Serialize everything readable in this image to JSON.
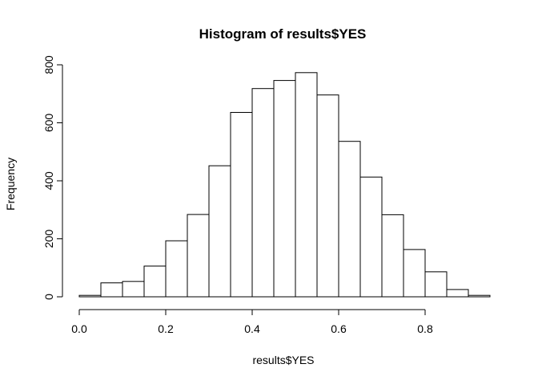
{
  "chart_data": {
    "type": "bar",
    "title": "Histogram of results$YES",
    "xlabel": "results$YES",
    "ylabel": "Frequency",
    "bins": [
      {
        "start": 0.0,
        "end": 0.05,
        "count": 5
      },
      {
        "start": 0.05,
        "end": 0.1,
        "count": 48
      },
      {
        "start": 0.1,
        "end": 0.15,
        "count": 53
      },
      {
        "start": 0.15,
        "end": 0.2,
        "count": 106
      },
      {
        "start": 0.2,
        "end": 0.25,
        "count": 193
      },
      {
        "start": 0.25,
        "end": 0.3,
        "count": 284
      },
      {
        "start": 0.3,
        "end": 0.35,
        "count": 452
      },
      {
        "start": 0.35,
        "end": 0.4,
        "count": 636
      },
      {
        "start": 0.4,
        "end": 0.45,
        "count": 718
      },
      {
        "start": 0.45,
        "end": 0.5,
        "count": 746
      },
      {
        "start": 0.5,
        "end": 0.55,
        "count": 773
      },
      {
        "start": 0.55,
        "end": 0.6,
        "count": 696
      },
      {
        "start": 0.6,
        "end": 0.65,
        "count": 536
      },
      {
        "start": 0.65,
        "end": 0.7,
        "count": 413
      },
      {
        "start": 0.7,
        "end": 0.75,
        "count": 283
      },
      {
        "start": 0.75,
        "end": 0.8,
        "count": 163
      },
      {
        "start": 0.8,
        "end": 0.85,
        "count": 86
      },
      {
        "start": 0.85,
        "end": 0.9,
        "count": 25
      },
      {
        "start": 0.9,
        "end": 0.95,
        "count": 5
      }
    ],
    "xlim": [
      0,
      0.95
    ],
    "ylim": [
      0,
      800
    ],
    "x_ticks": [
      "0.0",
      "0.2",
      "0.4",
      "0.6",
      "0.8"
    ],
    "y_ticks": [
      "0",
      "200",
      "400",
      "600",
      "800"
    ],
    "grid": false,
    "bar_fill": "#ffffff",
    "bar_stroke": "#000000"
  }
}
